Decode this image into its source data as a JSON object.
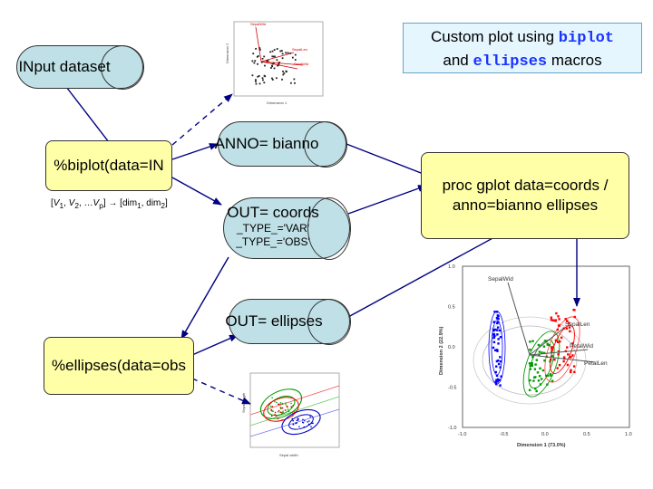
{
  "title": {
    "prefix": "Custom plot using",
    "macro1": "biplot",
    "middle": "and",
    "macro2": "ellipses",
    "suffix": "macros"
  },
  "datasets": {
    "input": "INput dataset",
    "anno": "ANNO= bianno",
    "out_coords": "OUT= coords",
    "type_var": "_TYPE_='VAR'",
    "type_obs": "_TYPE_='OBS'",
    "out_ellipses": "OUT= ellipses"
  },
  "macros": {
    "biplot": "%biplot(data=IN",
    "ellipses": "%ellipses(data=obs",
    "gplot_line1": "proc gplot data=coords /",
    "gplot_line2": "anno=bianno ellipses"
  },
  "vars_note": {
    "open": "[",
    "v1": "V",
    "s1": "1",
    "v2": "V",
    "s2": "2",
    "dots": ", …",
    "vp": "V",
    "sp": "p",
    "arrow": "] → [dim",
    "d1": "1",
    "mid": ", dim",
    "d2": "2",
    "close": "]"
  },
  "plot_labels": {
    "sepal_wid": "SepalWid",
    "sepal_len": "SepalLen",
    "petal_wid": "PetalWid",
    "petal_len": "PetalLen",
    "xlabel": "Dimension 1 (73.0%)",
    "ylabel": "Dimension 2 (22.9%)",
    "xticks": [
      "-1.0",
      "-0.5",
      "0.0",
      "0.5",
      "1.0"
    ],
    "yticks": [
      "-1.0",
      "-0.5",
      "0.0",
      "0.5",
      "1.0"
    ]
  },
  "colors": {
    "arrow": "#000080",
    "cylinder_fill": "#bfe0e6",
    "macro_fill": "#ffffa8",
    "title_fill": "#e6f6ff",
    "mono_text": "#1a33ff",
    "setosa": "#0000ff",
    "versicolor": "#009900",
    "virginica": "#ff0000"
  }
}
